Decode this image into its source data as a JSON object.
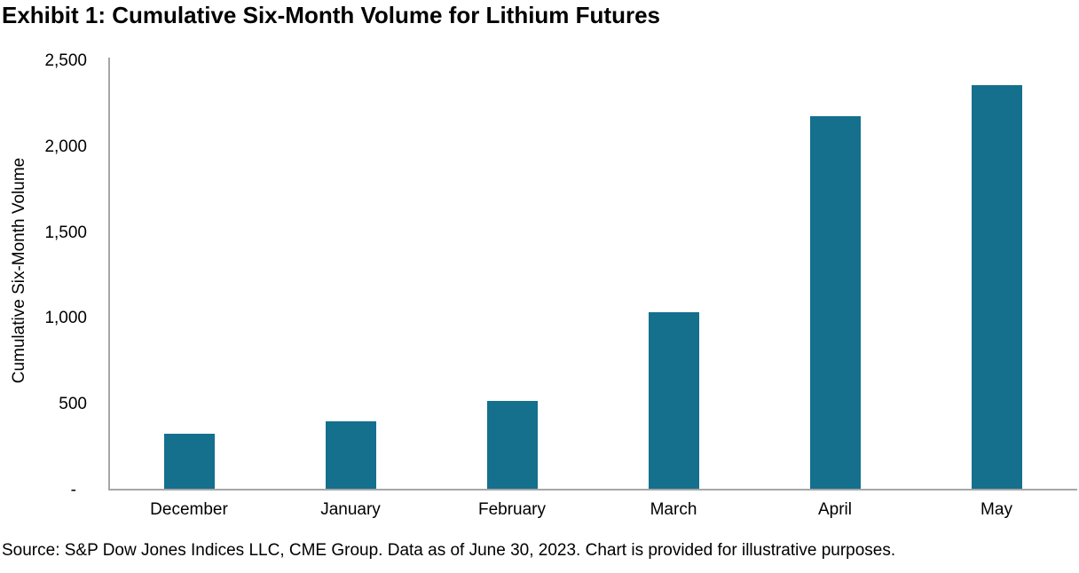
{
  "title": "Exhibit 1: Cumulative Six-Month Volume for Lithium Futures",
  "source_note": "Source: S&P Dow Jones Indices LLC, CME Group. Data as of June 30, 2023. Chart is provided for illustrative purposes.",
  "chart_data": {
    "type": "bar",
    "title": "Exhibit 1: Cumulative Six-Month Volume for Lithium Futures",
    "categories": [
      "December",
      "January",
      "February",
      "March",
      "April",
      "May"
    ],
    "values": [
      320,
      390,
      510,
      1030,
      2170,
      2350
    ],
    "xlabel": "",
    "ylabel": "Cumulative Six-Month Volume",
    "ylim": [
      0,
      2500
    ],
    "yticks": [
      {
        "value": 0,
        "label": "-"
      },
      {
        "value": 500,
        "label": "500"
      },
      {
        "value": 1000,
        "label": "1,000"
      },
      {
        "value": 1500,
        "label": "1,500"
      },
      {
        "value": 2000,
        "label": "2,000"
      },
      {
        "value": 2500,
        "label": "2,500"
      }
    ],
    "grid": false,
    "legend": "none",
    "bar_color": "#14708D",
    "axis_color": "#A6A6A6"
  }
}
